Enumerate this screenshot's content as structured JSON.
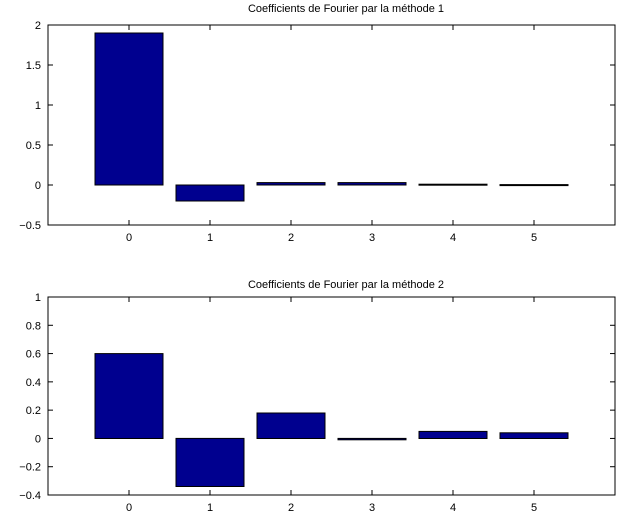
{
  "colors": {
    "bar_fill": "#00008F",
    "axis": "#000000",
    "background": "#FFFFFF"
  },
  "chart_data": [
    {
      "type": "bar",
      "title": "Coefficients de Fourier par la méthode 1",
      "xlabel": "",
      "ylabel": "",
      "categories": [
        "0",
        "1",
        "2",
        "3",
        "4",
        "5"
      ],
      "values": [
        1.9,
        -0.2,
        0.03,
        0.03,
        0.01,
        0.005
      ],
      "ylim": [
        -0.5,
        2
      ],
      "yticks": [
        -0.5,
        0,
        0.5,
        1,
        1.5,
        2
      ],
      "ytick_labels": [
        "−0.5",
        "0",
        "0.5",
        "1",
        "1.5",
        "2"
      ],
      "grid": false,
      "legend": "none"
    },
    {
      "type": "bar",
      "title": "Coefficients de Fourier par la méthode 2",
      "xlabel": "",
      "ylabel": "",
      "categories": [
        "0",
        "1",
        "2",
        "3",
        "4",
        "5"
      ],
      "values": [
        0.6,
        -0.34,
        0.18,
        -0.01,
        0.05,
        0.04
      ],
      "ylim": [
        -0.4,
        1
      ],
      "yticks": [
        -0.4,
        -0.2,
        0,
        0.2,
        0.4,
        0.6,
        0.8,
        1
      ],
      "ytick_labels": [
        "−0.4",
        "−0.2",
        "0",
        "0.2",
        "0.4",
        "0.6",
        "0.8",
        "1"
      ],
      "grid": false,
      "legend": "none"
    }
  ]
}
